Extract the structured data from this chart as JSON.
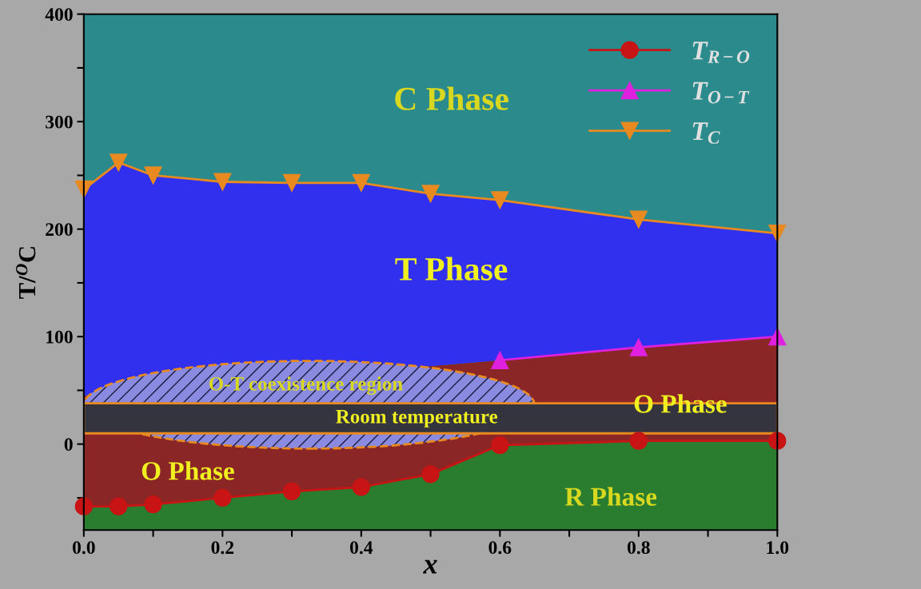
{
  "chart_data": {
    "type": "line",
    "xlabel": "x",
    "ylabel": "T/$^{O}$C",
    "xlim": [
      0,
      1
    ],
    "ylim": [
      -80,
      400
    ],
    "xticks": [
      {
        "value": 0,
        "label": "0.0"
      },
      {
        "value": 0.1,
        "label": null
      },
      {
        "value": 0.2,
        "label": "0.2"
      },
      {
        "value": 0.3,
        "label": null
      },
      {
        "value": 0.4,
        "label": "0.4"
      },
      {
        "value": 0.5,
        "label": null
      },
      {
        "value": 0.6,
        "label": "0.6"
      },
      {
        "value": 0.7,
        "label": null
      },
      {
        "value": 0.8,
        "label": "0.8"
      },
      {
        "value": 0.9,
        "label": null
      },
      {
        "value": 1,
        "label": "1.0"
      }
    ],
    "yticks": [
      {
        "value": -50,
        "label": null
      },
      0,
      {
        "value": 50,
        "label": null
      },
      100,
      {
        "value": 150,
        "label": null
      },
      200,
      {
        "value": 250,
        "label": null
      },
      300,
      {
        "value": 350,
        "label": null
      },
      400
    ],
    "grid": false,
    "legend": "top right",
    "series": [
      {
        "name": "T$_{R−O}$",
        "color": "#c81414",
        "marker": "circle",
        "x": [
          0,
          0.05,
          0.1,
          0.2,
          0.3,
          0.4,
          0.5,
          0.6,
          0.8,
          1.0
        ],
        "values": [
          -58,
          -58,
          -56,
          -50,
          -44,
          -40,
          -28,
          -1,
          3,
          3
        ]
      },
      {
        "name": "T$_{O−T}$",
        "color": "#e020e0",
        "marker": "triangle",
        "x": [
          0.6,
          0.8,
          1.0
        ],
        "values": [
          78,
          90,
          100
        ]
      },
      {
        "name": "T$_{C}$",
        "color": "#e88a20",
        "marker": "triangle_down",
        "x": [
          0,
          0.05,
          0.1,
          0.2,
          0.3,
          0.4,
          0.5,
          0.6,
          0.8,
          1.0
        ],
        "values": [
          237,
          262,
          250,
          244,
          243,
          243,
          233,
          227,
          209,
          196
        ]
      }
    ],
    "bands": [
      {
        "axis": "y",
        "from": 10,
        "to": 38,
        "label": "Room temperature",
        "color": "#34343f"
      }
    ],
    "annotations": [
      "C Phase",
      "T Phase",
      "O Phase",
      "O Phase",
      "R Phase",
      "O-T coexistence region"
    ]
  }
}
